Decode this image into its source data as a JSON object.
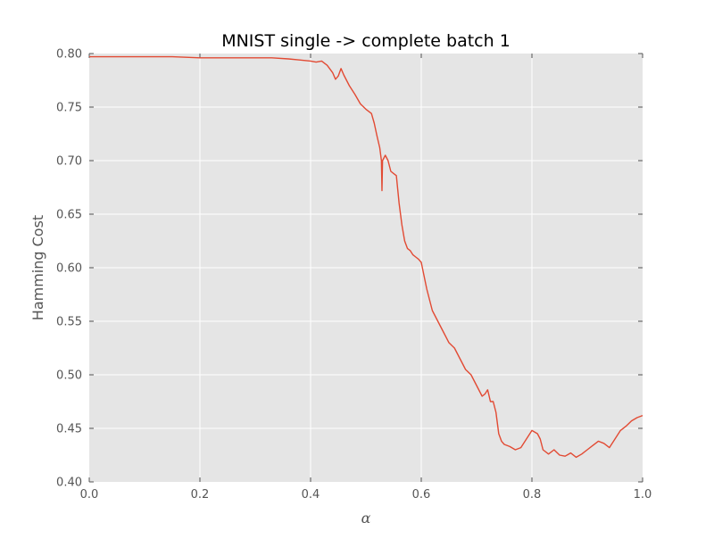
{
  "chart_data": {
    "type": "line",
    "title": "MNIST single -> complete batch 1",
    "xlabel": "α",
    "ylabel": "Hamming Cost",
    "xlim": [
      0.0,
      1.0
    ],
    "ylim": [
      0.4,
      0.8
    ],
    "x_ticks": [
      "0.0",
      "0.2",
      "0.4",
      "0.6",
      "0.8",
      "1.0"
    ],
    "y_ticks": [
      "0.40",
      "0.45",
      "0.50",
      "0.55",
      "0.60",
      "0.65",
      "0.70",
      "0.75",
      "0.80"
    ],
    "grid": true,
    "series": [
      {
        "color": "#e24a33",
        "x": [
          0.0,
          0.05,
          0.1,
          0.15,
          0.2,
          0.25,
          0.3,
          0.33,
          0.36,
          0.38,
          0.4,
          0.41,
          0.42,
          0.43,
          0.44,
          0.445,
          0.45,
          0.455,
          0.46,
          0.47,
          0.48,
          0.49,
          0.5,
          0.51,
          0.515,
          0.52,
          0.525,
          0.528,
          0.529,
          0.53,
          0.535,
          0.54,
          0.545,
          0.55,
          0.555,
          0.56,
          0.565,
          0.57,
          0.575,
          0.58,
          0.585,
          0.59,
          0.595,
          0.6,
          0.61,
          0.62,
          0.63,
          0.64,
          0.65,
          0.66,
          0.67,
          0.68,
          0.69,
          0.7,
          0.705,
          0.71,
          0.715,
          0.72,
          0.725,
          0.73,
          0.735,
          0.74,
          0.745,
          0.75,
          0.76,
          0.77,
          0.78,
          0.79,
          0.8,
          0.81,
          0.815,
          0.82,
          0.83,
          0.84,
          0.85,
          0.86,
          0.87,
          0.88,
          0.89,
          0.9,
          0.91,
          0.92,
          0.93,
          0.94,
          0.95,
          0.96,
          0.97,
          0.98,
          0.99,
          1.0
        ],
        "y": [
          0.797,
          0.797,
          0.797,
          0.797,
          0.796,
          0.796,
          0.796,
          0.796,
          0.795,
          0.794,
          0.793,
          0.792,
          0.793,
          0.789,
          0.782,
          0.776,
          0.779,
          0.786,
          0.78,
          0.77,
          0.762,
          0.753,
          0.748,
          0.744,
          0.735,
          0.723,
          0.712,
          0.7,
          0.672,
          0.7,
          0.705,
          0.7,
          0.69,
          0.688,
          0.686,
          0.66,
          0.64,
          0.625,
          0.618,
          0.616,
          0.612,
          0.61,
          0.608,
          0.605,
          0.58,
          0.56,
          0.55,
          0.54,
          0.53,
          0.525,
          0.515,
          0.505,
          0.5,
          0.49,
          0.485,
          0.48,
          0.482,
          0.486,
          0.475,
          0.475,
          0.465,
          0.445,
          0.438,
          0.435,
          0.433,
          0.43,
          0.432,
          0.44,
          0.448,
          0.445,
          0.44,
          0.43,
          0.426,
          0.43,
          0.425,
          0.424,
          0.427,
          0.423,
          0.426,
          0.43,
          0.434,
          0.438,
          0.436,
          0.432,
          0.44,
          0.448,
          0.452,
          0.457,
          0.46,
          0.462
        ]
      }
    ]
  }
}
